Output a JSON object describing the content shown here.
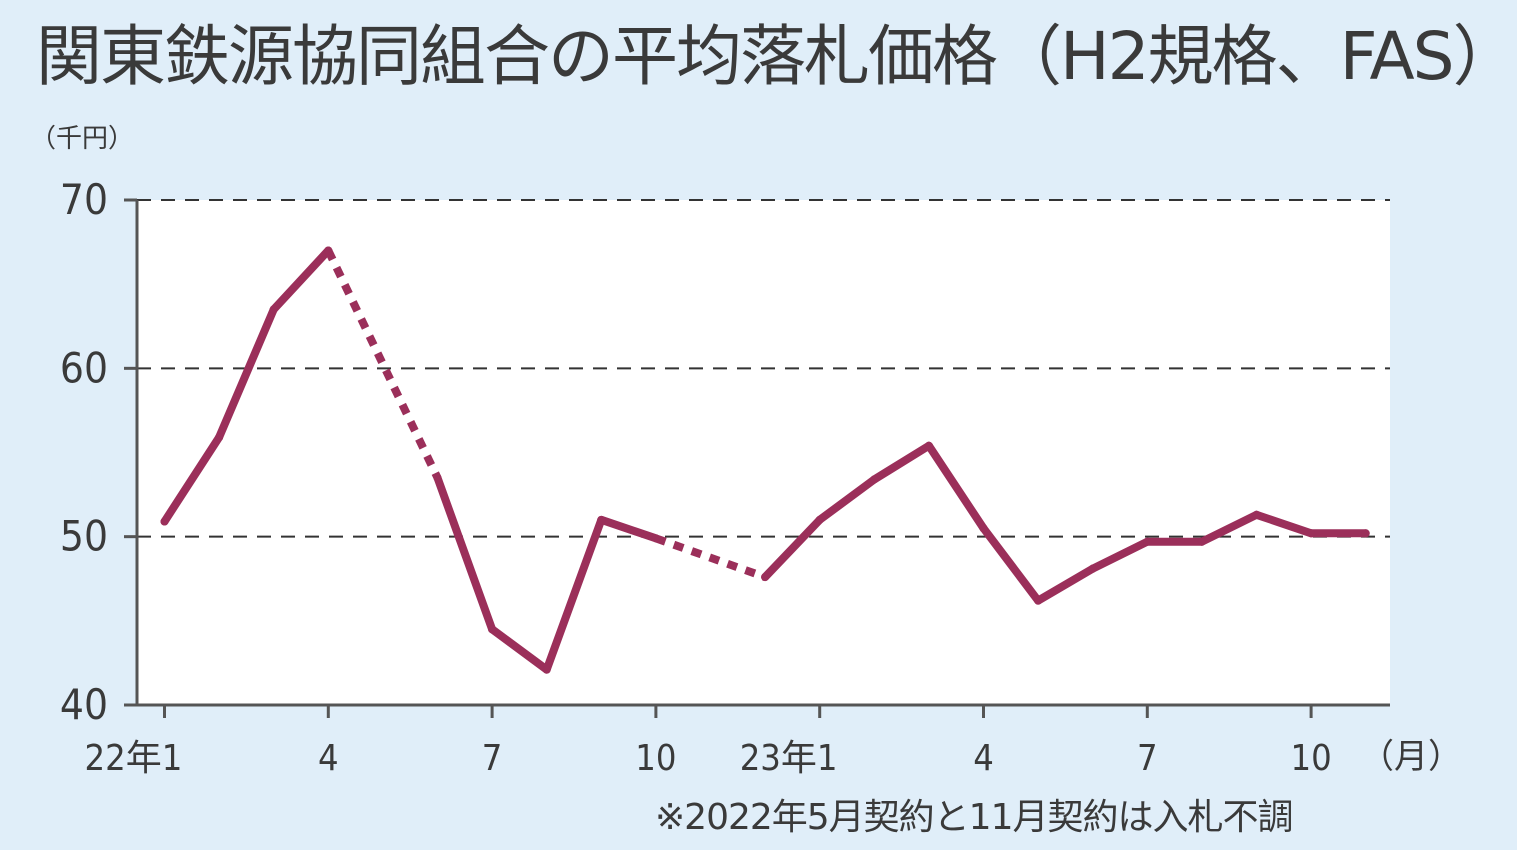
{
  "chart_data": {
    "type": "line",
    "title": "関東鉄源協同組合の平均落札価格（H2規格、FAS）",
    "ylabel": "（千円）",
    "xlabel": "（月）",
    "ylim": [
      40,
      70
    ],
    "yticks": [
      "70",
      "60",
      "50",
      "40"
    ],
    "xticks": [
      "22年1",
      "4",
      "7",
      "10",
      "23年1",
      "4",
      "7",
      "10"
    ],
    "grid": "dashed-horizontal",
    "series_color": "#9b2f5a",
    "x": [
      "2022-01",
      "2022-02",
      "2022-03",
      "2022-04",
      "2022-05",
      "2022-06",
      "2022-07",
      "2022-08",
      "2022-09",
      "2022-10",
      "2022-11",
      "2022-12",
      "2023-01",
      "2023-02",
      "2023-03",
      "2023-04",
      "2023-05",
      "2023-06",
      "2023-07",
      "2023-08",
      "2023-09",
      "2023-10",
      "2023-11",
      "2023-12"
    ],
    "values": [
      50.9,
      55.9,
      63.5,
      67.0,
      null,
      53.5,
      44.5,
      42.1,
      51.0,
      49.9,
      null,
      47.6,
      51.0,
      53.4,
      55.4,
      50.5,
      46.2,
      48.1,
      49.7,
      49.7,
      51.3,
      50.2,
      50.2,
      null
    ],
    "note": "※2022年5月契約と11月契約は入札不調"
  }
}
